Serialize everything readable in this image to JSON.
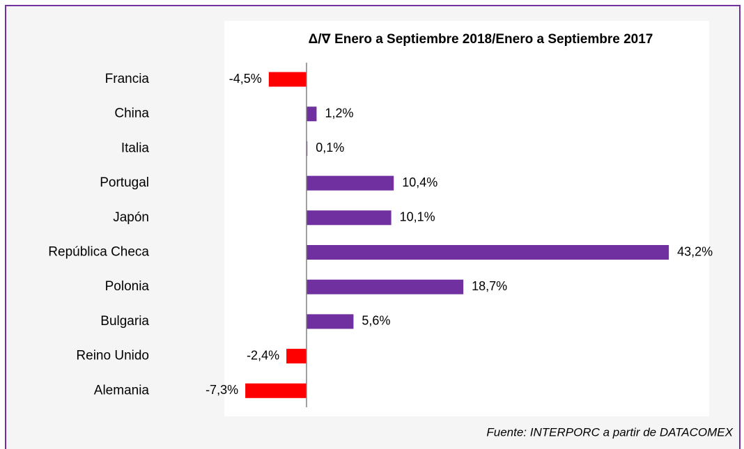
{
  "chart_data": {
    "type": "barh",
    "title": "Δ/∇ Enero a Septiembre 2018/Enero a Septiembre 2017",
    "source": "Fuente: INTERPORC a partir de DATACOMEX",
    "categories": [
      "Francia",
      "China",
      "Italia",
      "Portugal",
      "Japón",
      "República Checa",
      "Polonia",
      "Bulgaria",
      "Reino Unido",
      "Alemania"
    ],
    "values": [
      -4.5,
      1.2,
      0.1,
      10.4,
      10.1,
      43.2,
      18.7,
      5.6,
      -2.4,
      -7.3
    ],
    "value_labels": [
      "-4,5%",
      "1,2%",
      "0,1%",
      "10,4%",
      "10,1%",
      "43,2%",
      "18,7%",
      "5,6%",
      "-2,4%",
      "-7,3%"
    ],
    "positive_color": "#7030a0",
    "negative_color": "#ff0000"
  }
}
